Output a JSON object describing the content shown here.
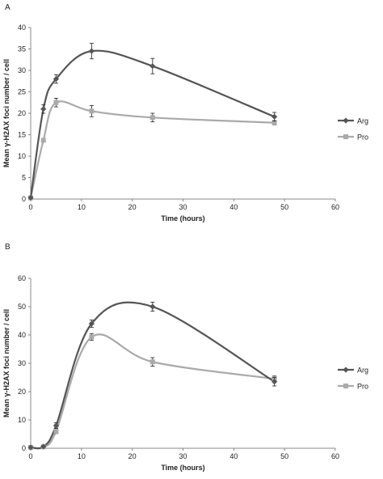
{
  "chart_data": [
    {
      "type": "line",
      "panel_label": "A",
      "xlabel": "Time (hours)",
      "ylabel": "Mean γ-H2AX foci number / cell",
      "xlim": [
        0,
        60
      ],
      "ylim": [
        0,
        40
      ],
      "xticks": [
        0,
        10,
        20,
        30,
        40,
        50,
        60
      ],
      "yticks": [
        0,
        5,
        10,
        15,
        20,
        25,
        30,
        35,
        40
      ],
      "legend_position": "right",
      "series": [
        {
          "name": "Arg",
          "marker": "diamond",
          "color": "#555555",
          "x": [
            0,
            2.5,
            5,
            12,
            24,
            48
          ],
          "y": [
            0.3,
            21,
            28,
            34.5,
            31,
            19.2
          ],
          "error": [
            0.2,
            1.0,
            1.0,
            1.8,
            1.8,
            1.0
          ]
        },
        {
          "name": "Pro",
          "marker": "square",
          "color": "#aaaaaa",
          "x": [
            0,
            2.5,
            5,
            12,
            24,
            48
          ],
          "y": [
            0.3,
            13.7,
            22.5,
            20.5,
            19.0,
            17.8
          ],
          "error": [
            0.2,
            0.4,
            1.0,
            1.3,
            1.0,
            0.5
          ]
        }
      ]
    },
    {
      "type": "line",
      "panel_label": "B",
      "xlabel": "Time (hours)",
      "ylabel": "Mean γ-H2AX foci number / cell",
      "xlim": [
        0,
        60
      ],
      "ylim": [
        0,
        60
      ],
      "xticks": [
        0,
        10,
        20,
        30,
        40,
        50,
        60
      ],
      "yticks": [
        0,
        10,
        20,
        30,
        40,
        50,
        60
      ],
      "legend_position": "right",
      "series": [
        {
          "name": "Arg",
          "marker": "diamond",
          "color": "#555555",
          "x": [
            0,
            2.5,
            5,
            12,
            24,
            48
          ],
          "y": [
            0.3,
            0.6,
            8.0,
            44.0,
            50.0,
            23.5
          ],
          "error": [
            0.2,
            0.3,
            1.0,
            1.3,
            1.6,
            1.5
          ]
        },
        {
          "name": "Pro",
          "marker": "square",
          "color": "#aaaaaa",
          "x": [
            0,
            2.5,
            5,
            12,
            24,
            48
          ],
          "y": [
            0.3,
            0.5,
            6.0,
            39.3,
            30.5,
            24.5
          ],
          "error": [
            0.2,
            0.3,
            0.8,
            1.2,
            1.5,
            1.0
          ]
        }
      ]
    }
  ]
}
